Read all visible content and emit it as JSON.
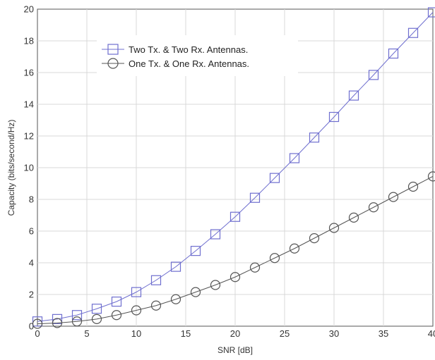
{
  "chart_data": {
    "type": "line",
    "xlabel": "SNR [dB]",
    "ylabel": "Capacity (bits/second/Hz)",
    "xlim": [
      0,
      40
    ],
    "ylim": [
      0,
      20
    ],
    "x_ticks": [
      0,
      5,
      10,
      15,
      20,
      25,
      30,
      35,
      40
    ],
    "y_ticks": [
      0,
      2,
      4,
      6,
      8,
      10,
      12,
      14,
      16,
      18,
      20
    ],
    "grid": true,
    "legend_position": "top-left",
    "x": [
      0,
      2,
      4,
      6,
      8,
      10,
      12,
      14,
      16,
      18,
      20,
      22,
      24,
      26,
      28,
      30,
      32,
      34,
      36,
      38,
      40
    ],
    "series": [
      {
        "name": "Two Tx. & Two Rx. Antennas.",
        "marker": "square",
        "color": "#6f6fcf",
        "values": [
          0.3,
          0.45,
          0.7,
          1.1,
          1.55,
          2.15,
          2.9,
          3.75,
          4.75,
          5.8,
          6.9,
          8.1,
          9.35,
          10.6,
          11.9,
          13.2,
          14.55,
          15.85,
          17.2,
          18.5,
          19.8
        ]
      },
      {
        "name": "One Tx. & One Rx. Antennas.",
        "marker": "circle",
        "color": "#555555",
        "values": [
          0.15,
          0.2,
          0.3,
          0.45,
          0.7,
          1.0,
          1.3,
          1.7,
          2.15,
          2.6,
          3.1,
          3.7,
          4.3,
          4.9,
          5.55,
          6.2,
          6.85,
          7.5,
          8.15,
          8.8,
          9.45
        ]
      }
    ]
  }
}
